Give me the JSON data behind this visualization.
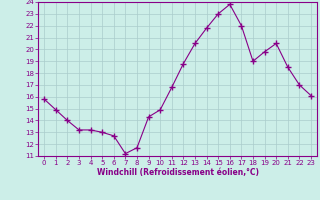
{
  "x": [
    0,
    1,
    2,
    3,
    4,
    5,
    6,
    7,
    8,
    9,
    10,
    11,
    12,
    13,
    14,
    15,
    16,
    17,
    18,
    19,
    20,
    21,
    22,
    23
  ],
  "y": [
    15.8,
    14.9,
    14.0,
    13.2,
    13.2,
    13.0,
    12.7,
    11.2,
    11.7,
    14.3,
    14.9,
    16.8,
    18.8,
    20.5,
    21.8,
    23.0,
    23.8,
    22.0,
    19.0,
    19.8,
    20.5,
    18.5,
    17.0,
    16.1
  ],
  "ylim": [
    11,
    24
  ],
  "xlim": [
    -0.5,
    23.5
  ],
  "yticks": [
    11,
    12,
    13,
    14,
    15,
    16,
    17,
    18,
    19,
    20,
    21,
    22,
    23,
    24
  ],
  "xticks": [
    0,
    1,
    2,
    3,
    4,
    5,
    6,
    7,
    8,
    9,
    10,
    11,
    12,
    13,
    14,
    15,
    16,
    17,
    18,
    19,
    20,
    21,
    22,
    23
  ],
  "xlabel": "Windchill (Refroidissement éolien,°C)",
  "line_color": "#880088",
  "marker_color": "#880088",
  "bg_color": "#cceee8",
  "grid_color": "#aacccc",
  "text_color": "#880088"
}
